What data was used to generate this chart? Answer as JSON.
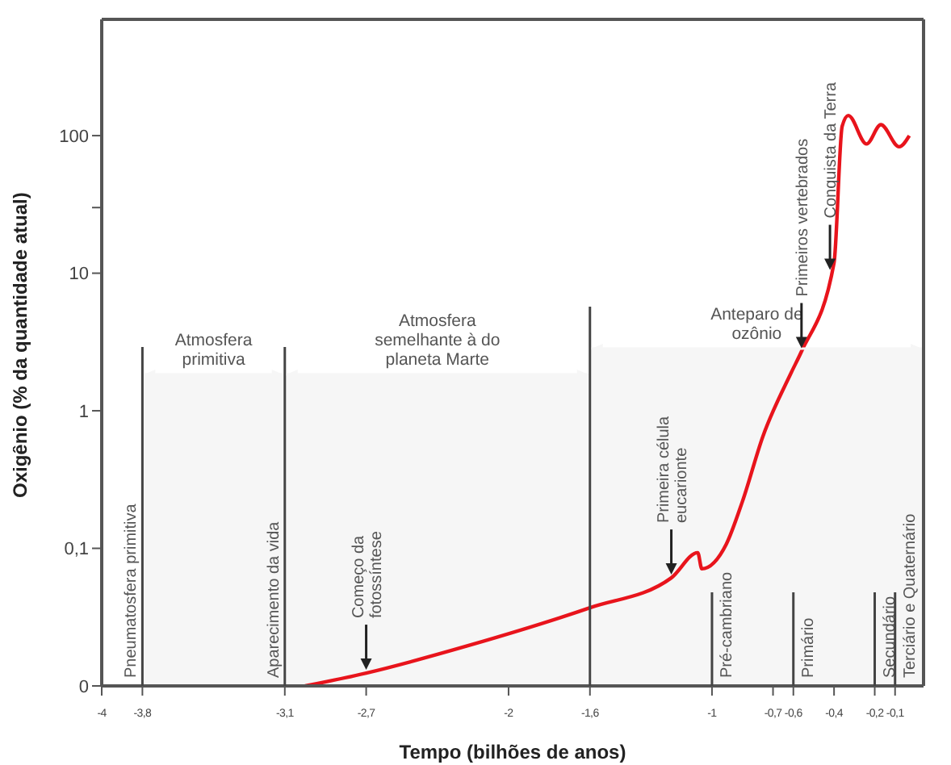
{
  "chart_data": {
    "type": "line",
    "xlabel": "Tempo (bilhões de anos)",
    "ylabel": "Oxigênio (% da quantidade atual)",
    "log": "y",
    "xlim": [
      -4,
      0.04
    ],
    "xticks": [
      {
        "value": -4,
        "label": "-4"
      },
      {
        "value": -3.8,
        "label": "-3,8"
      },
      {
        "value": -3.1,
        "label": "-3,1"
      },
      {
        "value": -2.7,
        "label": "-2,7"
      },
      {
        "value": -2,
        "label": "-2"
      },
      {
        "value": -1.6,
        "label": "-1,6"
      },
      {
        "value": -1,
        "label": "-1"
      },
      {
        "value": -0.7,
        "label": "-0,7"
      },
      {
        "value": -0.6,
        "label": "-0,6"
      },
      {
        "value": -0.4,
        "label": "-0,4"
      },
      {
        "value": -0.2,
        "label": "-0,2"
      },
      {
        "value": -0.1,
        "label": "-0,1"
      }
    ],
    "ylim": [
      0.01,
      700
    ],
    "yticks": [
      {
        "value": 0.01,
        "label": "0"
      },
      {
        "value": 0.1,
        "label": "0,1"
      },
      1,
      10,
      {
        "value": 30,
        "label": null
      },
      100
    ],
    "series": [
      {
        "color": "#e8141c",
        "x": [
          -3,
          -2.7,
          -2.2,
          -1.6,
          -1.2,
          -1.07,
          -1.05,
          -0.93,
          -0.85,
          -0.75,
          -0.61,
          -0.56,
          -0.4,
          -0.36,
          -0.33,
          -0.24,
          -0.17,
          -0.08,
          -0.03
        ],
        "values": [
          0.01,
          0.0124,
          0.0196,
          0.037,
          0.061,
          0.093,
          0.071,
          0.107,
          0.22,
          0.65,
          1.9,
          2.7,
          11.9,
          117,
          140,
          87,
          120,
          83,
          100
        ]
      }
    ],
    "ref_lines": [
      {
        "axis": "x",
        "value": -3.8,
        "label": "Pneumatosfera primitiva"
      },
      {
        "axis": "x",
        "value": -3.1,
        "label": "Aparecimento da vida"
      },
      {
        "axis": "x",
        "value": -1.6,
        "label": null
      },
      {
        "axis": "x",
        "value": -1,
        "label": "Pré-cambriano"
      },
      {
        "axis": "x",
        "value": -0.6,
        "label": "Primário"
      },
      {
        "axis": "x",
        "value": -0.2,
        "label": "Secundário"
      },
      {
        "axis": "x",
        "value": -0.1,
        "label": "Terciário e Quaternário"
      }
    ],
    "bands": [
      {
        "axis": "x",
        "from": -3.8,
        "to": -3.1,
        "label": "Atmosfera primitiva",
        "color": "#f6f6f6"
      },
      {
        "axis": "x",
        "from": -3.1,
        "to": -1.6,
        "label": "Atmosfera semelhante à do planeta Marte",
        "color": "#f6f6f6"
      },
      {
        "axis": "x",
        "from": -1.6,
        "to": 0.04,
        "label": "Anteparo de ozônio",
        "color": "#f6f6f6"
      }
    ],
    "annotations": [
      {
        "text": "Começo da fotossíntese",
        "x": -2.7,
        "y": 0.0124
      },
      {
        "text": "Primeira célula eucarionte",
        "x": -1.2,
        "y": 0.061
      },
      {
        "text": "Primeiros vertebrados",
        "x": -0.56,
        "y": 2.7
      },
      {
        "text": "Conquista da Terra",
        "x": -0.42,
        "y": 10
      }
    ]
  }
}
